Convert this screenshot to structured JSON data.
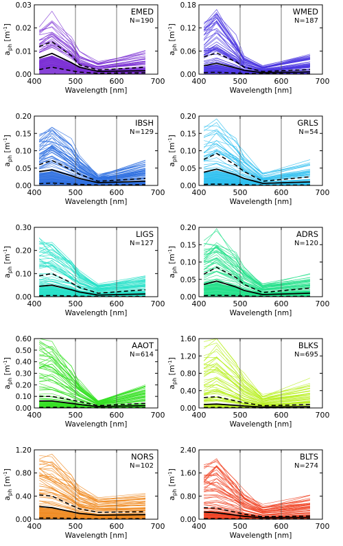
{
  "figure": {
    "xlabel": "Wavelength [nm]",
    "ylabel_main": "a",
    "ylabel_sub": "ph",
    "ylabel_unit": "[m",
    "ylabel_exp": "-1",
    "ylabel_close": "]"
  },
  "chart_data": [
    {
      "type": "line",
      "region": "EMED",
      "n": "N=190",
      "color": "#7b2fd4",
      "ylim": [
        0,
        0.03
      ],
      "yticks": [
        0.0,
        0.01,
        0.02,
        0.03
      ],
      "ytick_labels": [
        "0.00",
        "0.01",
        "0.02",
        "0.03"
      ],
      "xlim": [
        400,
        700
      ],
      "xticks": [
        400,
        500,
        600,
        700
      ],
      "x": [
        412,
        443,
        490,
        510,
        555,
        670
      ],
      "mean": [
        0.007,
        0.009,
        0.005,
        0.003,
        0.0012,
        0.0015
      ],
      "upper": [
        0.012,
        0.014,
        0.008,
        0.004,
        0.0018,
        0.003
      ],
      "lower": [
        0.002,
        0.003,
        0.0015,
        0.0009,
        0.0004,
        0.0006
      ],
      "max_curve": [
        0.02,
        0.025,
        0.015,
        0.009,
        0.005,
        0.01
      ],
      "vlines": [
        500,
        600
      ]
    },
    {
      "type": "line",
      "region": "WMED",
      "n": "N=187",
      "color": "#4a35e0",
      "ylim": [
        0,
        0.18
      ],
      "yticks": [
        0,
        0.06,
        0.12,
        0.18
      ],
      "ytick_labels": [
        "0.00",
        "0.06",
        "0.12",
        "0.18"
      ],
      "xlim": [
        400,
        700
      ],
      "xticks": [
        400,
        500,
        600,
        700
      ],
      "x": [
        412,
        443,
        490,
        510,
        555,
        670
      ],
      "mean": [
        0.022,
        0.028,
        0.016,
        0.01,
        0.004,
        0.006
      ],
      "upper": [
        0.045,
        0.055,
        0.032,
        0.018,
        0.007,
        0.012
      ],
      "lower": [
        0.004,
        0.005,
        0.003,
        0.002,
        0.001,
        0.001
      ],
      "max_curve": [
        0.13,
        0.165,
        0.09,
        0.045,
        0.02,
        0.05
      ],
      "vlines": [
        500,
        600
      ]
    },
    {
      "type": "line",
      "region": "IBSH",
      "n": "N=129",
      "color": "#2d6fe0",
      "ylim": [
        0,
        0.2
      ],
      "yticks": [
        0,
        0.05,
        0.1,
        0.15,
        0.2
      ],
      "ytick_labels": [
        "0.00",
        "0.05",
        "0.10",
        "0.15",
        "0.20"
      ],
      "xlim": [
        400,
        700
      ],
      "xticks": [
        400,
        500,
        600,
        700
      ],
      "x": [
        412,
        443,
        490,
        510,
        555,
        670
      ],
      "mean": [
        0.04,
        0.045,
        0.028,
        0.02,
        0.008,
        0.012
      ],
      "upper": [
        0.06,
        0.072,
        0.045,
        0.032,
        0.012,
        0.02
      ],
      "lower": [
        0.005,
        0.007,
        0.004,
        0.003,
        0.001,
        0.002
      ],
      "max_curve": [
        0.15,
        0.183,
        0.12,
        0.085,
        0.03,
        0.07
      ],
      "vlines": [
        500,
        600
      ]
    },
    {
      "type": "line",
      "region": "GRLS",
      "n": "N=54",
      "color": "#2fc0f0",
      "ylim": [
        0,
        0.2
      ],
      "yticks": [
        0,
        0.05,
        0.1,
        0.15,
        0.2
      ],
      "ytick_labels": [
        "0.00",
        "0.05",
        "0.10",
        "0.15",
        "0.20"
      ],
      "xlim": [
        400,
        700
      ],
      "xticks": [
        400,
        500,
        600,
        700
      ],
      "x": [
        412,
        443,
        490,
        510,
        555,
        670
      ],
      "mean": [
        0.038,
        0.047,
        0.03,
        0.02,
        0.006,
        0.01
      ],
      "upper": [
        0.075,
        0.092,
        0.058,
        0.04,
        0.012,
        0.025
      ],
      "lower": [
        0.003,
        0.004,
        0.003,
        0.002,
        0.0005,
        0.001
      ],
      "max_curve": [
        0.16,
        0.19,
        0.13,
        0.09,
        0.035,
        0.065
      ],
      "vlines": [
        500,
        600
      ]
    },
    {
      "type": "line",
      "region": "LIGS",
      "n": "N=127",
      "color": "#25e0c8",
      "ylim": [
        0,
        0.3
      ],
      "yticks": [
        0,
        0.1,
        0.2,
        0.3
      ],
      "ytick_labels": [
        "0.00",
        "0.10",
        "0.20",
        "0.30"
      ],
      "xlim": [
        400,
        700
      ],
      "xticks": [
        400,
        500,
        600,
        700
      ],
      "x": [
        412,
        443,
        490,
        510,
        555,
        670
      ],
      "mean": [
        0.045,
        0.05,
        0.03,
        0.02,
        0.007,
        0.012
      ],
      "upper": [
        0.09,
        0.1,
        0.06,
        0.04,
        0.015,
        0.03
      ],
      "lower": [
        0.004,
        0.005,
        0.003,
        0.002,
        0.001,
        0.001
      ],
      "max_curve": [
        0.24,
        0.22,
        0.15,
        0.1,
        0.05,
        0.08
      ],
      "vlines": [
        500,
        600
      ]
    },
    {
      "type": "line",
      "region": "ADRS",
      "n": "N=120",
      "color": "#22e08a",
      "ylim": [
        0,
        0.2
      ],
      "yticks": [
        0,
        0.05,
        0.1,
        0.15,
        0.2
      ],
      "ytick_labels": [
        "0.00",
        "0.05",
        "0.10",
        "0.15",
        "0.20"
      ],
      "xlim": [
        400,
        700
      ],
      "xticks": [
        400,
        500,
        600,
        700
      ],
      "x": [
        412,
        443,
        490,
        510,
        555,
        670
      ],
      "mean": [
        0.035,
        0.045,
        0.028,
        0.018,
        0.006,
        0.01
      ],
      "upper": [
        0.065,
        0.085,
        0.055,
        0.035,
        0.012,
        0.025
      ],
      "lower": [
        0.003,
        0.004,
        0.003,
        0.002,
        0.0005,
        0.001
      ],
      "max_curve": [
        0.15,
        0.18,
        0.12,
        0.08,
        0.035,
        0.06
      ],
      "vlines": [
        500,
        600
      ]
    },
    {
      "type": "line",
      "region": "AAOT",
      "n": "N=614",
      "color": "#35e023",
      "ylim": [
        0,
        0.6
      ],
      "yticks": [
        0,
        0.1,
        0.2,
        0.3,
        0.4,
        0.5,
        0.6
      ],
      "ytick_labels": [
        "0.00",
        "0.10",
        "0.20",
        "0.30",
        "0.40",
        "0.50",
        "0.60"
      ],
      "xlim": [
        400,
        700
      ],
      "xticks": [
        400,
        500,
        600,
        700
      ],
      "x": [
        412,
        443,
        490,
        510,
        555,
        670
      ],
      "mean": [
        0.06,
        0.06,
        0.04,
        0.03,
        0.012,
        0.02
      ],
      "upper": [
        0.1,
        0.1,
        0.07,
        0.055,
        0.02,
        0.04
      ],
      "lower": [
        0.005,
        0.006,
        0.004,
        0.003,
        0.001,
        0.002
      ],
      "max_curve": [
        0.58,
        0.56,
        0.34,
        0.22,
        0.06,
        0.2
      ],
      "vlines": [
        500,
        600
      ]
    },
    {
      "type": "line",
      "region": "BLKS",
      "n": "N=695",
      "color": "#b8f020",
      "ylim": [
        0,
        1.6
      ],
      "yticks": [
        0,
        0.4,
        0.8,
        1.2,
        1.6
      ],
      "ytick_labels": [
        "0.00",
        "0.40",
        "0.80",
        "1.20",
        "1.60"
      ],
      "xlim": [
        400,
        700
      ],
      "xticks": [
        400,
        500,
        600,
        700
      ],
      "x": [
        412,
        443,
        490,
        510,
        555,
        670
      ],
      "mean": [
        0.08,
        0.09,
        0.06,
        0.045,
        0.02,
        0.03
      ],
      "upper": [
        0.24,
        0.26,
        0.16,
        0.12,
        0.05,
        0.08
      ],
      "lower": [
        0.01,
        0.012,
        0.008,
        0.006,
        0.002,
        0.003
      ],
      "max_curve": [
        1.4,
        1.6,
        1.0,
        0.7,
        0.3,
        0.6
      ],
      "vlines": [
        500,
        600
      ]
    },
    {
      "type": "line",
      "region": "NORS",
      "n": "N=102",
      "color": "#f08a20",
      "ylim": [
        0,
        1.2
      ],
      "yticks": [
        0,
        0.4,
        0.8,
        1.2
      ],
      "ytick_labels": [
        "0.00",
        "0.40",
        "0.80",
        "1.20"
      ],
      "xlim": [
        400,
        700
      ],
      "xticks": [
        400,
        500,
        600,
        700
      ],
      "x": [
        412,
        443,
        490,
        510,
        555,
        670
      ],
      "mean": [
        0.22,
        0.2,
        0.13,
        0.1,
        0.07,
        0.08
      ],
      "upper": [
        0.42,
        0.4,
        0.24,
        0.18,
        0.12,
        0.13
      ],
      "lower": [
        0.02,
        0.02,
        0.015,
        0.01,
        0.006,
        0.008
      ],
      "max_curve": [
        1.1,
        1.0,
        0.7,
        0.5,
        0.35,
        0.4
      ],
      "vlines": [
        500,
        600
      ]
    },
    {
      "type": "line",
      "region": "BLTS",
      "n": "N=274",
      "color": "#f03f20",
      "ylim": [
        0,
        2.4
      ],
      "yticks": [
        0,
        0.8,
        1.6,
        2.4
      ],
      "ytick_labels": [
        "0.00",
        "0.80",
        "1.60",
        "2.40"
      ],
      "xlim": [
        400,
        700
      ],
      "xticks": [
        400,
        500,
        600,
        700
      ],
      "x": [
        412,
        443,
        490,
        510,
        555,
        670
      ],
      "mean": [
        0.25,
        0.22,
        0.14,
        0.1,
        0.05,
        0.06
      ],
      "upper": [
        0.4,
        0.38,
        0.24,
        0.17,
        0.09,
        0.11
      ],
      "lower": [
        0.02,
        0.02,
        0.015,
        0.01,
        0.005,
        0.006
      ],
      "max_curve": [
        1.9,
        2.05,
        1.3,
        0.9,
        0.45,
        0.75
      ],
      "vlines": [
        500,
        600
      ]
    }
  ]
}
